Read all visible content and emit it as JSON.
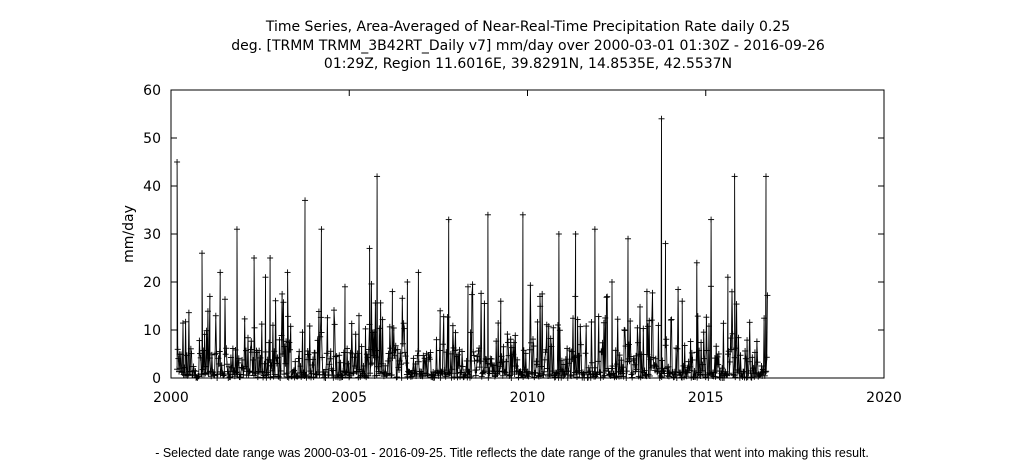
{
  "chart_data": {
    "type": "line",
    "title_lines": [
      "Time Series, Area-Averaged of Near-Real-Time Precipitation Rate daily 0.25",
      "deg. [TRMM TRMM_3B42RT_Daily v7] mm/day over 2000-03-01 01:30Z - 2016-09-26",
      "01:29Z, Region 11.6016E, 39.8291N, 14.8535E, 42.5537N"
    ],
    "xlabel": "",
    "ylabel": "mm/day",
    "xlim": [
      2000,
      2020
    ],
    "ylim": [
      0,
      60
    ],
    "x_ticks": [
      2000,
      2005,
      2010,
      2015,
      2020
    ],
    "y_ticks": [
      0,
      10,
      20,
      30,
      40,
      50,
      60
    ],
    "grid": false,
    "legend": "none",
    "marker": "+",
    "color": "#000000",
    "peaks": [
      {
        "x": 2000.17,
        "y": 45
      },
      {
        "x": 2000.87,
        "y": 26
      },
      {
        "x": 2001.09,
        "y": 17
      },
      {
        "x": 2001.38,
        "y": 22
      },
      {
        "x": 2001.85,
        "y": 31
      },
      {
        "x": 2002.33,
        "y": 25
      },
      {
        "x": 2002.65,
        "y": 21
      },
      {
        "x": 2002.78,
        "y": 25
      },
      {
        "x": 2003.27,
        "y": 22
      },
      {
        "x": 2003.76,
        "y": 37
      },
      {
        "x": 2004.22,
        "y": 31
      },
      {
        "x": 2004.88,
        "y": 19
      },
      {
        "x": 2005.57,
        "y": 27
      },
      {
        "x": 2005.78,
        "y": 42
      },
      {
        "x": 2006.21,
        "y": 18
      },
      {
        "x": 2006.63,
        "y": 20
      },
      {
        "x": 2006.94,
        "y": 22
      },
      {
        "x": 2007.55,
        "y": 14
      },
      {
        "x": 2007.79,
        "y": 33
      },
      {
        "x": 2008.33,
        "y": 19
      },
      {
        "x": 2008.89,
        "y": 34
      },
      {
        "x": 2009.25,
        "y": 16
      },
      {
        "x": 2009.87,
        "y": 34
      },
      {
        "x": 2010.35,
        "y": 17
      },
      {
        "x": 2010.88,
        "y": 30
      },
      {
        "x": 2011.34,
        "y": 17
      },
      {
        "x": 2011.35,
        "y": 30
      },
      {
        "x": 2011.89,
        "y": 31
      },
      {
        "x": 2012.37,
        "y": 20
      },
      {
        "x": 2012.82,
        "y": 29
      },
      {
        "x": 2013.35,
        "y": 18
      },
      {
        "x": 2013.76,
        "y": 54
      },
      {
        "x": 2013.87,
        "y": 28
      },
      {
        "x": 2014.34,
        "y": 16
      },
      {
        "x": 2014.75,
        "y": 24
      },
      {
        "x": 2015.15,
        "y": 33
      },
      {
        "x": 2015.62,
        "y": 21
      },
      {
        "x": 2015.81,
        "y": 42
      },
      {
        "x": 2016.69,
        "y": 42
      }
    ]
  },
  "caption": "- Selected date range was 2000-03-01 - 2016-09-25. Title reflects the date range of the granules that went into making this result."
}
